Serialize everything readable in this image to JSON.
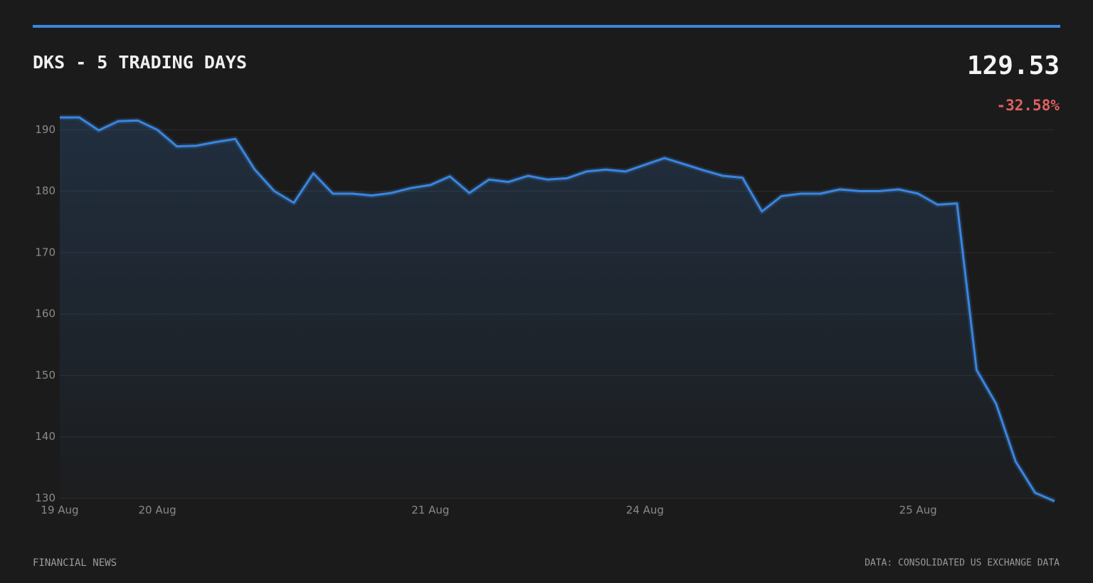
{
  "header": {
    "price": "129.53",
    "change": "-32.58%"
  },
  "footer": {
    "left": "FINANCIAL NEWS",
    "right": "DATA: CONSOLIDATED US EXCHANGE DATA"
  },
  "chart_data": {
    "type": "line",
    "title": "DKS - 5 TRADING DAYS",
    "categories": [
      "19 Aug",
      null,
      null,
      null,
      null,
      "20 Aug",
      null,
      null,
      null,
      null,
      null,
      null,
      null,
      null,
      null,
      null,
      null,
      null,
      null,
      "21 Aug",
      null,
      null,
      null,
      null,
      null,
      null,
      null,
      null,
      null,
      null,
      "24 Aug",
      null,
      null,
      null,
      null,
      null,
      null,
      null,
      null,
      null,
      null,
      null,
      null,
      null,
      "25 Aug",
      null,
      null,
      null,
      null,
      null,
      null,
      null
    ],
    "values": [
      192.0,
      192.0,
      189.9,
      191.4,
      191.5,
      190.0,
      187.3,
      187.4,
      188.0,
      188.5,
      183.5,
      180.0,
      178.1,
      182.9,
      179.6,
      179.6,
      179.3,
      179.7,
      180.5,
      181.0,
      182.4,
      179.7,
      181.9,
      181.5,
      182.5,
      181.9,
      182.1,
      183.2,
      183.5,
      183.2,
      184.3,
      185.4,
      184.4,
      183.4,
      182.5,
      182.2,
      176.7,
      179.2,
      179.6,
      179.6,
      180.3,
      180.0,
      180.0,
      180.3,
      179.6,
      177.8,
      178.0,
      150.9,
      145.4,
      136.0,
      130.9,
      129.53
    ],
    "color": "#3a86e0",
    "ylim": [
      130,
      192
    ],
    "yticks": [
      130,
      140,
      150,
      160,
      170,
      180,
      190
    ],
    "grid": true
  }
}
